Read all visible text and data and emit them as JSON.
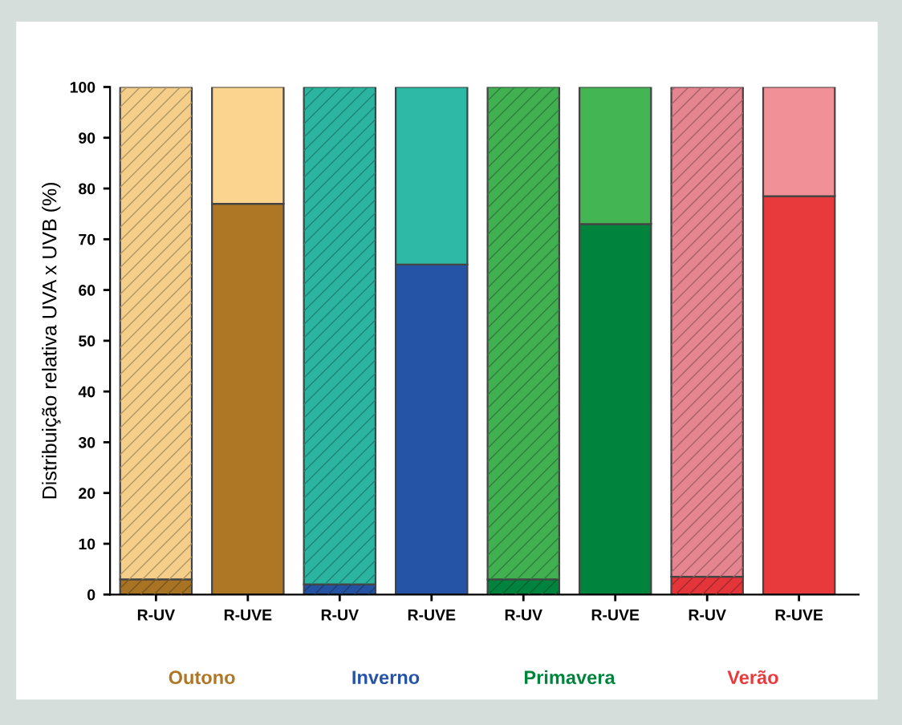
{
  "chart_data": {
    "type": "bar",
    "stacked": true,
    "ylabel": "Distribuição relativa UVA x UVB (%)",
    "categories": [
      "R-UV",
      "R-UVE",
      "R-UV",
      "R-UVE",
      "R-UV",
      "R-UVE",
      "R-UV",
      "R-UVE"
    ],
    "series": [
      {
        "colors": [
          "#a87424",
          "#ad7726",
          "#2452a0",
          "#2553a6",
          "#00843d",
          "#00843d",
          "#e3353a",
          "#e8393d"
        ],
        "values": [
          3,
          77,
          2,
          65,
          3,
          73,
          3.5,
          78.5
        ]
      },
      {
        "colors": [
          "#f5cf8a",
          "#fbd58f",
          "#2bb5a0",
          "#2db9a5",
          "#40b050",
          "#44b553",
          "#e48590",
          "#f29098"
        ],
        "values": [
          97,
          23,
          98,
          35,
          97,
          27,
          96.5,
          21.5
        ]
      }
    ],
    "annotations": [
      "Outono",
      "Inverno",
      "Primavera",
      "Verão"
    ],
    "ylim": [
      0,
      100
    ],
    "yticks": [
      0,
      10,
      20,
      30,
      40,
      50,
      60,
      70,
      80,
      90,
      100
    ],
    "grid": false,
    "legend": false
  }
}
